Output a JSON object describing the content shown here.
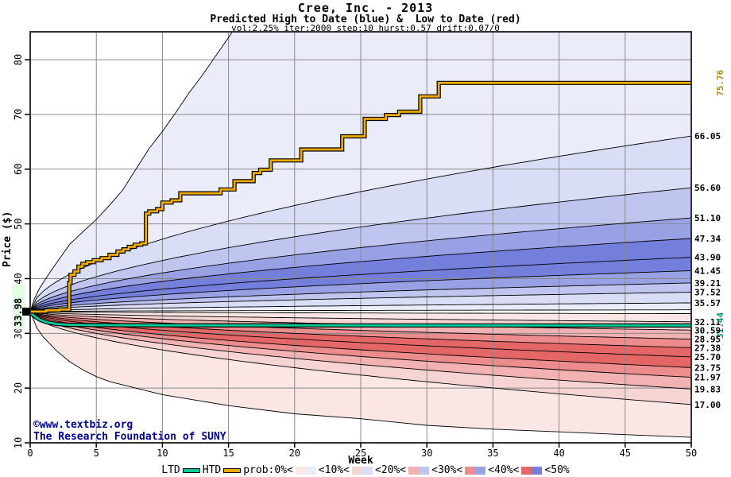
{
  "header": {
    "title": "Cree, Inc. - 2013",
    "subtitle": "Predicted High to Date (blue) &  Low to Date (red)",
    "params": "vol:2.25% iter:2000 step:10 hurst:0.57 drift:0.07/0"
  },
  "watermark": {
    "line1": "©www.textbiz.org",
    "line2": "The Research Foundation of SUNY",
    "color": "#000099"
  },
  "legend": {
    "ltd_label": "LTD",
    "htd_label": "HTD",
    "prob_label": "prob:0%<",
    "ltd_color": "#00cc99",
    "htd_color": "#eeaa00",
    "bands": [
      {
        "label": "<10%<",
        "red": "#fbe6e6",
        "blue": "#eaecf9"
      },
      {
        "label": "<20%<",
        "red": "#f7d4d4",
        "blue": "#d9ddf5"
      },
      {
        "label": "<30%<",
        "red": "#f2b2b2",
        "blue": "#bfc5ee"
      },
      {
        "label": "<40%<",
        "red": "#ec8c8c",
        "blue": "#99a1e5"
      },
      {
        "label": "<50%",
        "red": "#e56666",
        "blue": "#747edb"
      }
    ]
  },
  "chart_data": {
    "type": "area",
    "title": "Cree, Inc. - 2013",
    "xlabel": "Week",
    "ylabel": "Price ($)",
    "xlim": [
      0,
      50
    ],
    "ylim": [
      10,
      85.1
    ],
    "x_ticks": [
      0,
      5,
      10,
      15,
      20,
      25,
      30,
      35,
      40,
      45,
      50
    ],
    "y_ticks": [
      10,
      20,
      30,
      40,
      50,
      60,
      70,
      80
    ],
    "grid": true,
    "start_price": 33.98,
    "start_price_label": "33.98",
    "start_label_bg": "#e4ffe4",
    "htd_final": 75.76,
    "ltd_final": 31.44,
    "shape_exponent": 0.55,
    "band_colors": {
      "blue": [
        "#eaecf9",
        "#d9ddf5",
        "#bfc5ee",
        "#99a1e5",
        "#747edb"
      ],
      "red": [
        "#fbe6e6",
        "#f7d4d4",
        "#f2b2b2",
        "#ec8c8c",
        "#e56666"
      ]
    },
    "htd_color": "#eeaa00",
    "ltd_color": "#00cc99",
    "high_decile_ends": [
      34.3,
      35.57,
      37.52,
      39.21,
      41.45,
      43.9,
      47.34,
      51.1,
      56.6,
      66.05
    ],
    "high_max_envelope": [
      [
        0,
        33.98
      ],
      [
        0.3,
        36.2
      ],
      [
        0.7,
        38.2
      ],
      [
        1.5,
        41.2
      ],
      [
        2.5,
        44.6
      ],
      [
        3,
        46.3
      ],
      [
        4,
        48.6
      ],
      [
        5,
        50.8
      ],
      [
        6,
        53.4
      ],
      [
        7,
        56.2
      ],
      [
        8,
        60.0
      ],
      [
        9,
        63.8
      ],
      [
        10,
        66.9
      ],
      [
        11,
        70.3
      ],
      [
        12,
        73.9
      ],
      [
        13,
        77.1
      ],
      [
        14,
        80.6
      ],
      [
        15.3,
        85.2
      ],
      [
        50,
        85.2
      ]
    ],
    "low_decile_ends": [
      33.6,
      32.11,
      30.59,
      28.95,
      27.38,
      25.7,
      23.75,
      21.97,
      19.83,
      17.0
    ],
    "low_min_envelope": [
      [
        0,
        33.98
      ],
      [
        0.5,
        31.0
      ],
      [
        1,
        29.3
      ],
      [
        2,
        26.8
      ],
      [
        3,
        24.8
      ],
      [
        4,
        23.3
      ],
      [
        5,
        22.1
      ],
      [
        6,
        21.2
      ],
      [
        8,
        20.0
      ],
      [
        10,
        18.8
      ],
      [
        12,
        18.0
      ],
      [
        15,
        16.8
      ],
      [
        20,
        15.3
      ],
      [
        25,
        14.4
      ],
      [
        30,
        13.2
      ],
      [
        35,
        12.5
      ],
      [
        40,
        12.0
      ],
      [
        45,
        11.5
      ],
      [
        50,
        11.0
      ]
    ],
    "htd_steps": [
      [
        0,
        33.98
      ],
      [
        1.2,
        34.2
      ],
      [
        2.2,
        34.35
      ],
      [
        2.95,
        39.2
      ],
      [
        3.05,
        40.7
      ],
      [
        3.35,
        41.3
      ],
      [
        3.65,
        42.2
      ],
      [
        3.95,
        42.7
      ],
      [
        4.3,
        43.0
      ],
      [
        4.8,
        43.35
      ],
      [
        5.4,
        43.75
      ],
      [
        6.0,
        44.35
      ],
      [
        6.6,
        44.95
      ],
      [
        7.05,
        45.35
      ],
      [
        7.45,
        45.8
      ],
      [
        7.9,
        46.2
      ],
      [
        8.4,
        46.45
      ],
      [
        8.75,
        51.9
      ],
      [
        9.0,
        52.3
      ],
      [
        9.6,
        52.7
      ],
      [
        10.0,
        53.9
      ],
      [
        10.7,
        54.3
      ],
      [
        11.35,
        55.6
      ],
      [
        14.4,
        56.3
      ],
      [
        15.45,
        57.8
      ],
      [
        16.9,
        59.3
      ],
      [
        17.4,
        59.9
      ],
      [
        18.2,
        61.6
      ],
      [
        20.5,
        63.6
      ],
      [
        23.6,
        66.0
      ],
      [
        25.3,
        69.2
      ],
      [
        26.9,
        69.9
      ],
      [
        27.9,
        70.5
      ],
      [
        29.5,
        73.3
      ],
      [
        30.9,
        75.76
      ]
    ],
    "ltd_steps": [
      [
        0,
        33.8
      ],
      [
        0.4,
        33.0
      ],
      [
        0.8,
        32.4
      ],
      [
        1.3,
        32.0
      ],
      [
        2.0,
        31.7
      ],
      [
        3.0,
        31.55
      ],
      [
        5,
        31.5
      ],
      [
        10,
        31.47
      ],
      [
        50,
        31.44
      ]
    ],
    "right_labels": [
      {
        "text": "75.76",
        "price": 75.76,
        "color": "#b8860b",
        "rotated": true
      },
      {
        "text": "66.05",
        "price": 66.05,
        "color": "#000000",
        "rotated": false
      },
      {
        "text": "56.60",
        "price": 56.6,
        "color": "#000000",
        "rotated": false
      },
      {
        "text": "51.10",
        "price": 51.1,
        "color": "#000000",
        "rotated": false
      },
      {
        "text": "47.34",
        "price": 47.34,
        "color": "#000000",
        "rotated": false
      },
      {
        "text": "43.90",
        "price": 43.9,
        "color": "#000000",
        "rotated": false
      },
      {
        "text": "41.45",
        "price": 41.45,
        "color": "#000000",
        "rotated": false
      },
      {
        "text": "39.21",
        "price": 39.21,
        "color": "#000000",
        "rotated": false
      },
      {
        "text": "37.52",
        "price": 37.52,
        "color": "#000000",
        "rotated": false
      },
      {
        "text": "35.57",
        "price": 35.57,
        "color": "#000000",
        "rotated": false
      },
      {
        "text": "32.11",
        "price": 32.11,
        "color": "#000000",
        "rotated": false
      },
      {
        "text": "31.44",
        "price": 31.44,
        "color": "#009966",
        "rotated": true
      },
      {
        "text": "30.59",
        "price": 30.59,
        "color": "#000000",
        "rotated": false
      },
      {
        "text": "28.95",
        "price": 28.95,
        "color": "#000000",
        "rotated": false
      },
      {
        "text": "27.38",
        "price": 27.38,
        "color": "#000000",
        "rotated": false
      },
      {
        "text": "25.70",
        "price": 25.7,
        "color": "#000000",
        "rotated": false
      },
      {
        "text": "23.75",
        "price": 23.75,
        "color": "#000000",
        "rotated": false
      },
      {
        "text": "21.97",
        "price": 21.97,
        "color": "#000000",
        "rotated": false
      },
      {
        "text": "19.83",
        "price": 19.83,
        "color": "#000000",
        "rotated": false
      },
      {
        "text": "17.00",
        "price": 17.0,
        "color": "#000000",
        "rotated": false
      }
    ]
  }
}
